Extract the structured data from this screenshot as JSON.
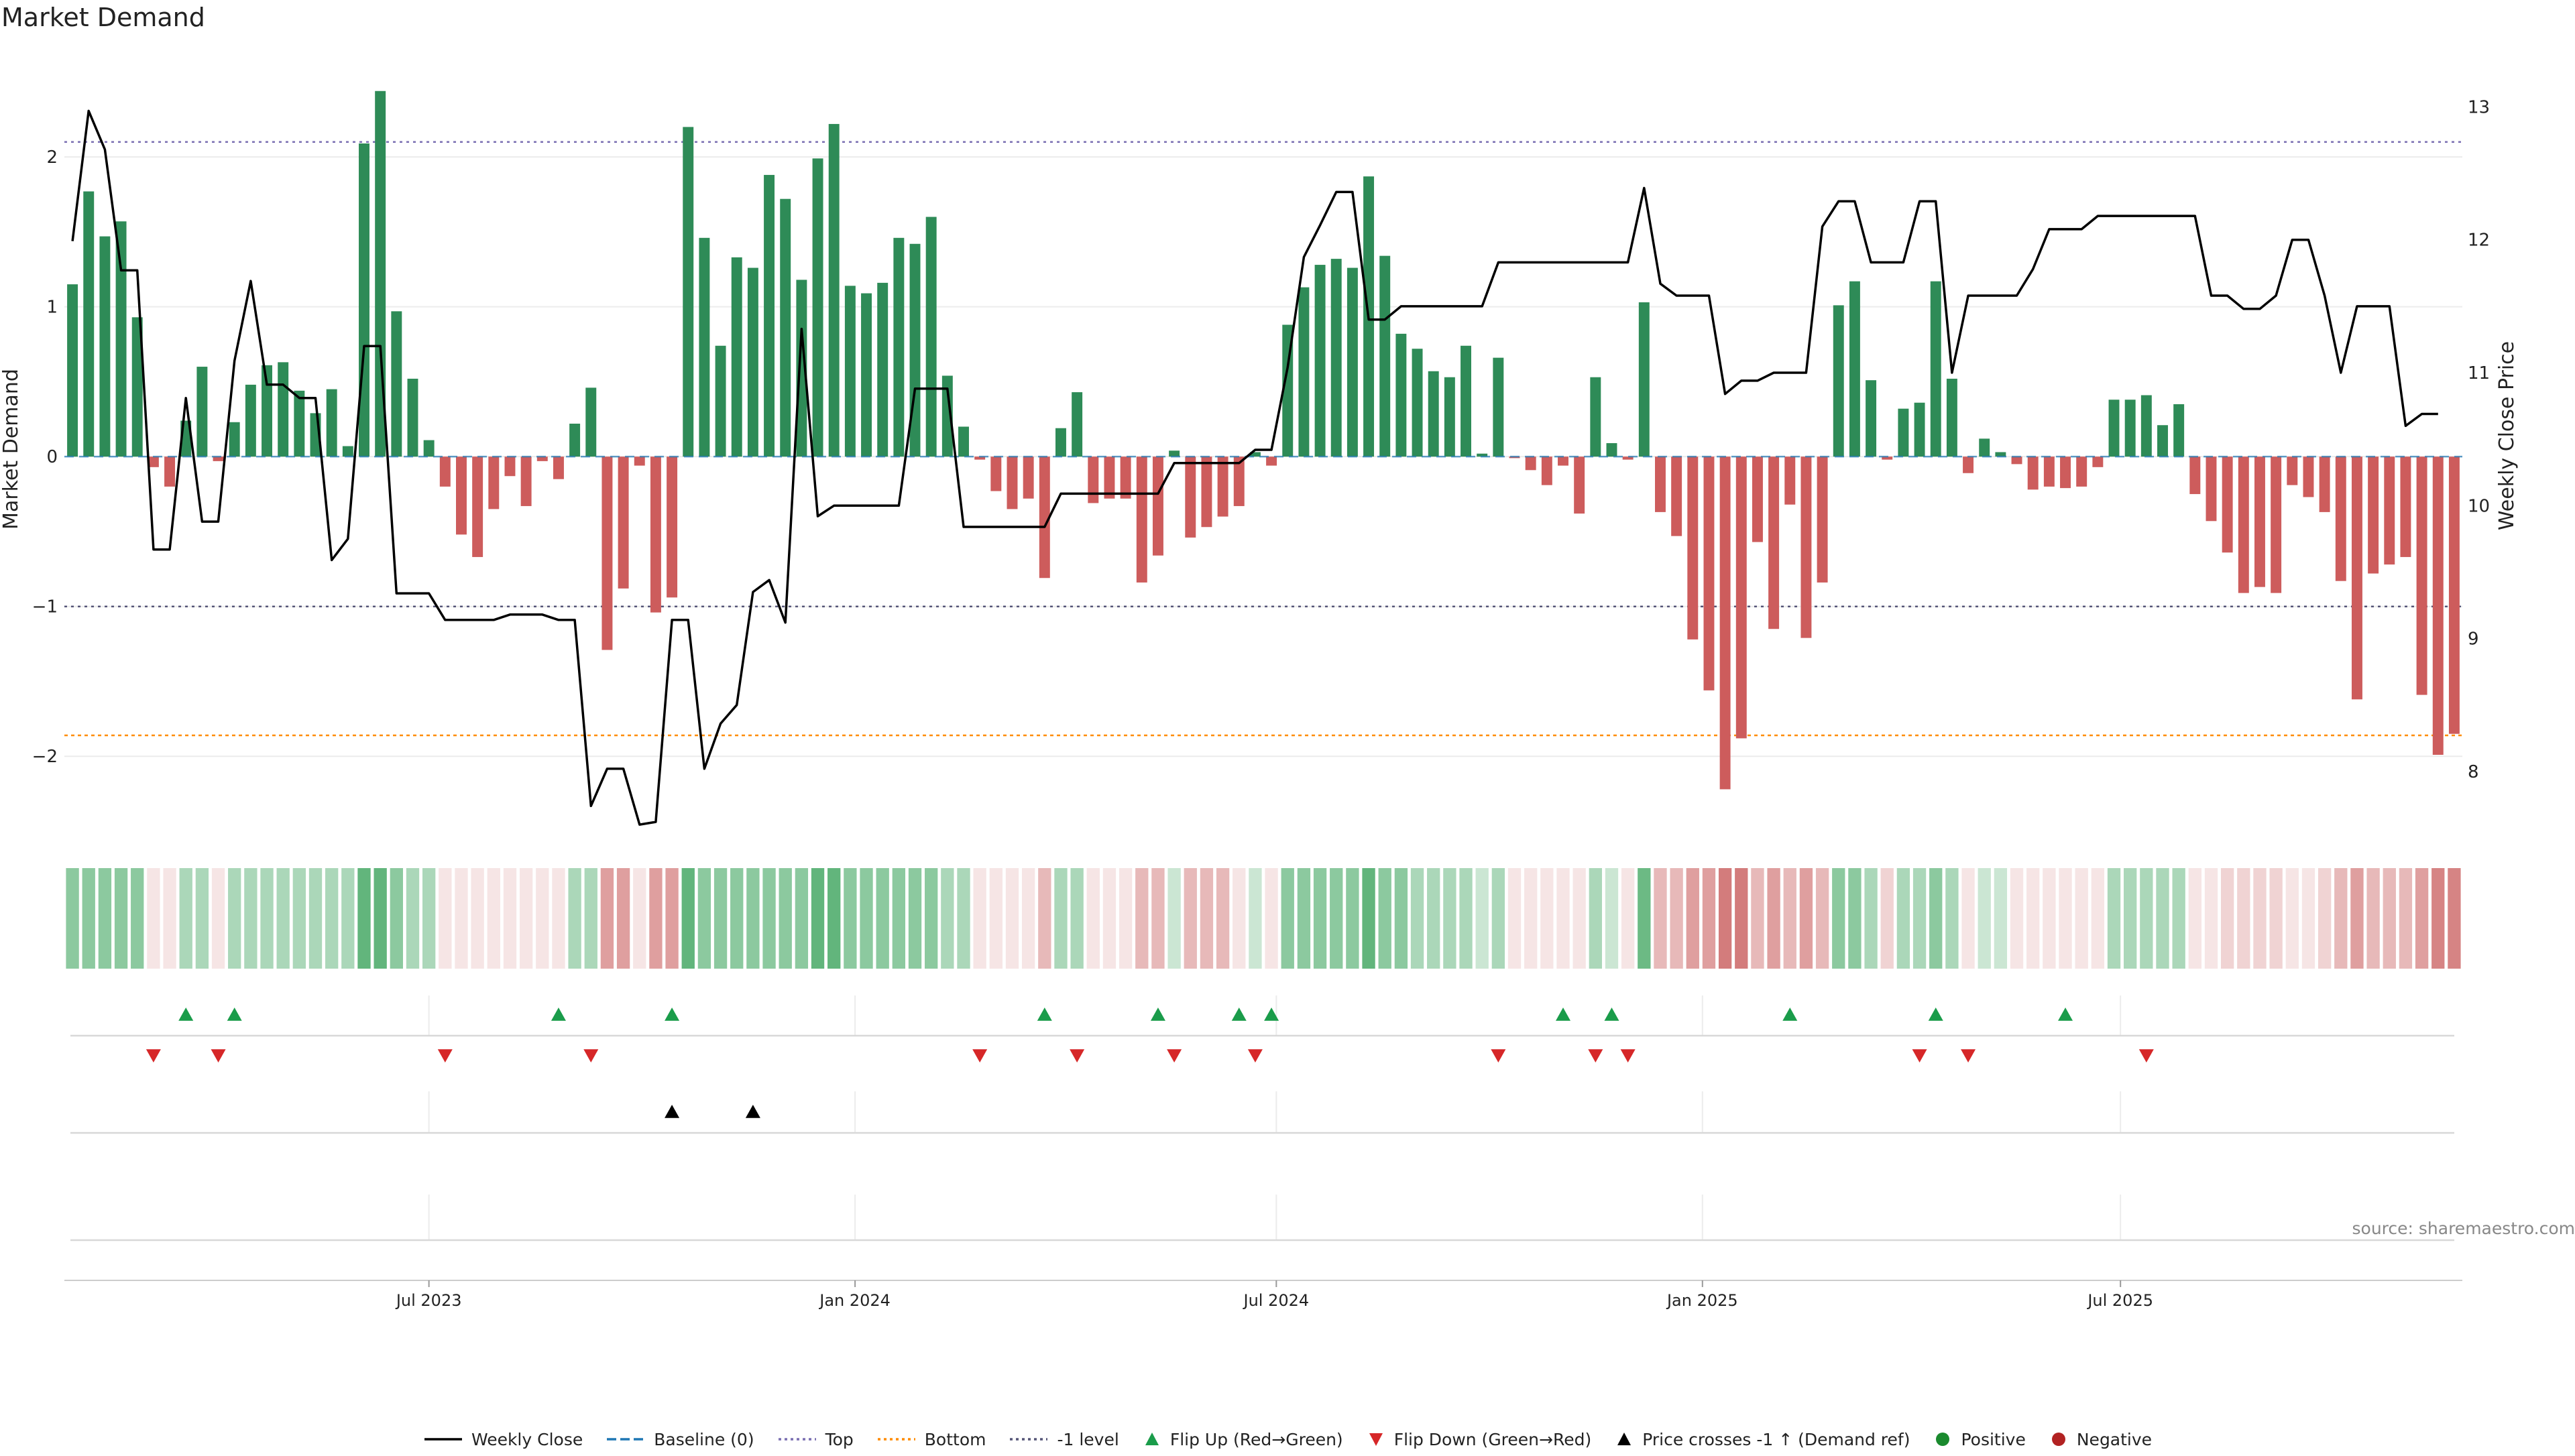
{
  "title": "Market Demand",
  "source": "source: sharemaestro.com",
  "colors": {
    "positive_bar": "#2e8b57",
    "negative_bar": "#cd5c5c",
    "price_line": "#000000",
    "top_line": "#7a6fb2",
    "bottom_line": "#ff8c00",
    "minus1_line": "#555577",
    "baseline": "#1f77b4",
    "flip_up": "#1a9c4a",
    "flip_down": "#d62728",
    "cross_marker": "#000000",
    "heat_pos": "#2e9c50",
    "heat_neg": "#c45050"
  },
  "legend": [
    {
      "label": "Weekly Close",
      "kind": "line-solid",
      "color": "#000000"
    },
    {
      "label": "Baseline (0)",
      "kind": "line-dashed",
      "color": "#1f77b4"
    },
    {
      "label": "Top",
      "kind": "line-dotted",
      "color": "#7a6fb2"
    },
    {
      "label": "Bottom",
      "kind": "line-dotted",
      "color": "#ff8c00"
    },
    {
      "label": "-1 level",
      "kind": "line-dotted",
      "color": "#555577"
    },
    {
      "label": "Flip Up (Red→Green)",
      "kind": "tri-up",
      "color": "#1a9c4a"
    },
    {
      "label": "Flip Down (Green→Red)",
      "kind": "tri-down",
      "color": "#d62728"
    },
    {
      "label": "Price crosses -1 ↑ (Demand ref)",
      "kind": "tri-up",
      "color": "#000000"
    },
    {
      "label": "Positive",
      "kind": "dot",
      "color": "#1a8a2e"
    },
    {
      "label": "Negative",
      "kind": "dot",
      "color": "#b22222"
    }
  ],
  "chart_data": {
    "type": "bar",
    "title": "Market Demand",
    "ylabel": "Market Demand",
    "y2label": "Weekly Close Price",
    "ylim": [
      -2.5,
      2.6
    ],
    "y2lim": [
      7.55,
      13.3
    ],
    "yticks": [
      2,
      1,
      0,
      -1,
      -2
    ],
    "ytick_labels": [
      "2",
      "1",
      "0",
      "−1",
      "−2"
    ],
    "y2ticks": [
      13,
      12,
      11,
      10,
      9,
      8
    ],
    "xticks": [
      {
        "label": "Jul 2023",
        "index": 22
      },
      {
        "label": "Jan 2024",
        "index": 48.3
      },
      {
        "label": "Jul 2024",
        "index": 74.3
      },
      {
        "label": "Jan 2025",
        "index": 100.6
      },
      {
        "label": "Jul 2025",
        "index": 126.4
      }
    ],
    "levels": {
      "top": 2.1,
      "bottom": -1.86,
      "minus1": -1,
      "baseline": 0
    },
    "grid": true,
    "series": [
      {
        "name": "Market Demand",
        "values": [
          1.15,
          1.77,
          1.47,
          1.57,
          0.93,
          -0.07,
          -0.2,
          0.24,
          0.6,
          -0.03,
          0.23,
          0.48,
          0.61,
          0.63,
          0.44,
          0.29,
          0.45,
          0.07,
          2.09,
          2.44,
          0.97,
          0.52,
          0.11,
          -0.2,
          -0.52,
          -0.67,
          -0.35,
          -0.13,
          -0.33,
          -0.03,
          -0.15,
          0.22,
          0.46,
          -1.29,
          -0.88,
          -0.06,
          -1.04,
          -0.94,
          2.2,
          1.46,
          0.74,
          1.33,
          1.26,
          1.88,
          1.72,
          1.18,
          1.99,
          2.22,
          1.14,
          1.09,
          1.16,
          1.46,
          1.42,
          1.6,
          0.54,
          0.2,
          -0.02,
          -0.23,
          -0.35,
          -0.28,
          -0.81,
          0.19,
          0.43,
          -0.31,
          -0.28,
          -0.28,
          -0.84,
          -0.66,
          0.04,
          -0.54,
          -0.47,
          -0.4,
          -0.33,
          0.03,
          -0.06,
          0.88,
          1.13,
          1.28,
          1.32,
          1.26,
          1.87,
          1.34,
          0.82,
          0.72,
          0.57,
          0.53,
          0.74,
          0.02,
          0.66,
          -0.01,
          -0.09,
          -0.19,
          -0.06,
          -0.38,
          0.53,
          0.09,
          -0.02,
          1.03,
          -0.37,
          -0.53,
          -1.22,
          -1.56,
          -2.22,
          -1.88,
          -0.57,
          -1.15,
          -0.32,
          -1.21,
          -0.84,
          1.01,
          1.17,
          0.51,
          -0.02,
          0.32,
          0.36,
          1.17,
          0.52,
          -0.11,
          0.12,
          0.03,
          -0.05,
          -0.22,
          -0.2,
          -0.21,
          -0.2,
          -0.07,
          0.38,
          0.38,
          0.41,
          0.21,
          0.35,
          -0.25,
          -0.43,
          -0.64,
          -0.91,
          -0.87,
          -0.91,
          -0.19,
          -0.27,
          -0.37,
          -0.83,
          -1.62,
          -0.78,
          -0.72,
          -0.67,
          -1.59,
          -1.99,
          -1.85
        ]
      },
      {
        "name": "Weekly Close",
        "values": [
          11.99,
          12.97,
          12.68,
          11.77,
          11.77,
          9.67,
          9.67,
          10.81,
          9.88,
          9.88,
          11.09,
          11.69,
          10.91,
          10.91,
          10.81,
          10.81,
          9.59,
          9.75,
          11.2,
          11.2,
          9.34,
          9.34,
          9.34,
          9.14,
          9.14,
          9.14,
          9.14,
          9.18,
          9.18,
          9.18,
          9.14,
          9.14,
          7.74,
          8.02,
          8.02,
          7.6,
          7.62,
          9.14,
          9.14,
          8.02,
          8.36,
          8.5,
          9.35,
          9.44,
          9.12,
          11.33,
          9.92,
          10.0,
          10.0,
          10.0,
          10.0,
          10.0,
          10.88,
          10.88,
          10.88,
          9.84,
          9.84,
          9.84,
          9.84,
          9.84,
          9.84,
          10.09,
          10.09,
          10.09,
          10.09,
          10.09,
          10.09,
          10.09,
          10.32,
          10.32,
          10.32,
          10.32,
          10.32,
          10.42,
          10.42,
          11.04,
          11.87,
          12.11,
          12.36,
          12.36,
          11.4,
          11.4,
          11.5,
          11.5,
          11.5,
          11.5,
          11.5,
          11.5,
          11.83,
          11.83,
          11.83,
          11.83,
          11.83,
          11.83,
          11.83,
          11.83,
          11.83,
          12.39,
          11.67,
          11.58,
          11.58,
          11.58,
          10.84,
          10.94,
          10.94,
          11.0,
          11.0,
          11.0,
          12.1,
          12.29,
          12.29,
          11.83,
          11.83,
          11.83,
          12.29,
          12.29,
          11.0,
          11.58,
          11.58,
          11.58,
          11.58,
          11.78,
          12.08,
          12.08,
          12.08,
          12.18,
          12.18,
          12.18,
          12.18,
          12.18,
          12.18,
          12.18,
          11.58,
          11.58,
          11.48,
          11.48,
          11.58,
          12.0,
          12.0,
          11.58,
          11.0,
          11.5,
          11.5,
          11.5,
          10.6,
          10.69,
          10.69
        ]
      }
    ],
    "heat_strength": [
      0.55,
      0.55,
      0.55,
      0.55,
      0.55,
      0.15,
      0.15,
      0.4,
      0.4,
      0.15,
      0.4,
      0.4,
      0.4,
      0.4,
      0.4,
      0.4,
      0.4,
      0.4,
      0.75,
      0.75,
      0.55,
      0.4,
      0.4,
      0.15,
      0.15,
      0.15,
      0.15,
      0.15,
      0.15,
      0.15,
      0.15,
      0.4,
      0.4,
      0.55,
      0.55,
      0.15,
      0.55,
      0.55,
      0.75,
      0.55,
      0.55,
      0.55,
      0.55,
      0.55,
      0.55,
      0.55,
      0.75,
      0.75,
      0.55,
      0.55,
      0.55,
      0.55,
      0.55,
      0.55,
      0.4,
      0.4,
      0.15,
      0.15,
      0.15,
      0.15,
      0.4,
      0.4,
      0.4,
      0.15,
      0.15,
      0.15,
      0.4,
      0.4,
      0.25,
      0.4,
      0.4,
      0.4,
      0.15,
      0.25,
      0.15,
      0.55,
      0.55,
      0.55,
      0.55,
      0.55,
      0.75,
      0.55,
      0.55,
      0.4,
      0.4,
      0.4,
      0.4,
      0.25,
      0.4,
      0.15,
      0.15,
      0.15,
      0.15,
      0.15,
      0.4,
      0.25,
      0.15,
      0.7,
      0.4,
      0.4,
      0.55,
      0.55,
      0.75,
      0.75,
      0.4,
      0.55,
      0.4,
      0.55,
      0.4,
      0.55,
      0.55,
      0.4,
      0.25,
      0.4,
      0.4,
      0.55,
      0.4,
      0.15,
      0.25,
      0.25,
      0.15,
      0.15,
      0.15,
      0.15,
      0.15,
      0.15,
      0.4,
      0.4,
      0.4,
      0.4,
      0.4,
      0.15,
      0.15,
      0.25,
      0.25,
      0.25,
      0.25,
      0.15,
      0.15,
      0.25,
      0.4,
      0.55,
      0.4,
      0.4,
      0.4,
      0.55,
      0.7,
      0.7
    ],
    "flip_up_index": [
      7,
      10,
      30,
      37,
      60,
      67,
      72,
      74,
      92,
      95,
      106,
      115,
      123
    ],
    "flip_down_index": [
      5,
      9,
      23,
      32,
      56,
      62,
      68,
      73,
      88,
      94,
      96,
      114,
      117,
      128
    ],
    "price_cross_up_index": [
      37,
      42
    ]
  }
}
